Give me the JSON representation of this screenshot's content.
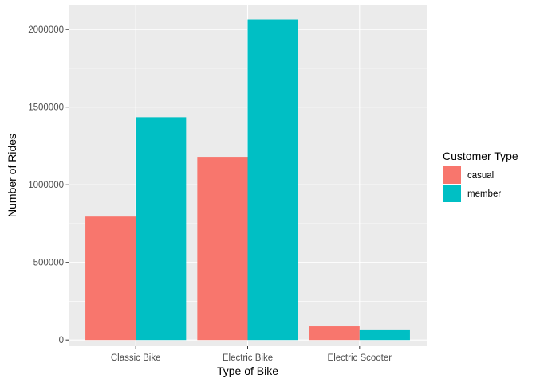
{
  "chart_data": {
    "type": "bar",
    "xlabel": "Type of Bike",
    "ylabel": "Number of Rides",
    "categories": [
      "Classic Bike",
      "Electric Bike",
      "Electric Scooter"
    ],
    "series": [
      {
        "name": "casual",
        "color": "#F8766D",
        "values": [
          795000,
          1180000,
          88000
        ]
      },
      {
        "name": "member",
        "color": "#00BFC4",
        "values": [
          1435000,
          2065000,
          63000
        ]
      }
    ],
    "ylim": [
      -40000,
      2160000
    ],
    "yticks": [
      0,
      500000,
      1000000,
      1500000,
      2000000
    ],
    "ytick_labels": [
      "0",
      "500000",
      "1000000",
      "1500000",
      "2000000"
    ],
    "grid": true,
    "legend": {
      "title": "Customer Type",
      "position": "right"
    },
    "panel_background": "#EBEBEB"
  }
}
